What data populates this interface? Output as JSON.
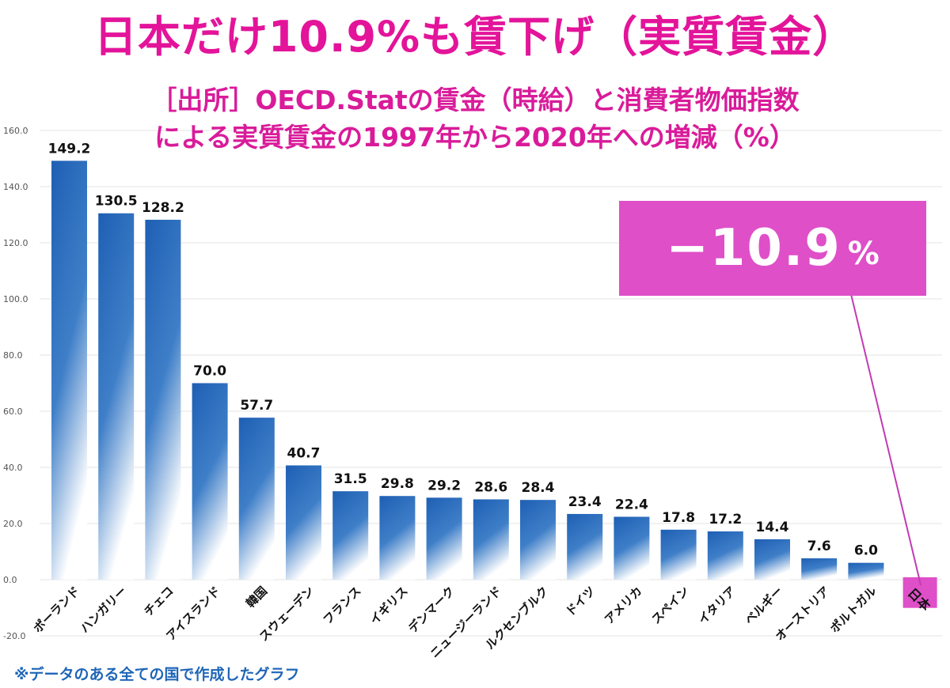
{
  "header": {
    "title": "日本だけ10.9%も賃下げ（実質賃金）",
    "subtitle_line1": "［出所］OECD.Statの賃金（時給）と消費者物価指数",
    "subtitle_line2": "による実質賃金の1997年から2020年への増減（%）"
  },
  "footnote": "※データのある全ての国で作成したグラフ",
  "callout": {
    "value": "−10.9",
    "unit": "%",
    "color": "#df4fc8"
  },
  "chart_data": {
    "type": "bar",
    "categories": [
      "ポーランド",
      "ハンガリー",
      "チェコ",
      "アイスランド",
      "韓国",
      "スウェーデン",
      "フランス",
      "イギリス",
      "デンマーク",
      "ニュージーランド",
      "ルクセンブルク",
      "ドイツ",
      "アメリカ",
      "スペイン",
      "イタリア",
      "ベルギー",
      "オーストリア",
      "ポルトガル",
      "日本"
    ],
    "values": [
      149.2,
      130.5,
      128.2,
      70.0,
      57.7,
      40.7,
      31.5,
      29.8,
      29.2,
      28.6,
      28.4,
      23.4,
      22.4,
      17.8,
      17.2,
      14.4,
      7.6,
      6.0,
      -10.9
    ],
    "data_labels": [
      "149.2",
      "130.5",
      "128.2",
      "70.0",
      "57.7",
      "40.7",
      "31.5",
      "29.8",
      "29.2",
      "28.6",
      "28.4",
      "23.4",
      "22.4",
      "17.8",
      "17.2",
      "14.4",
      "7.6",
      "6.0",
      ""
    ],
    "yticks": [
      -20,
      0,
      20,
      40,
      60,
      80,
      100,
      120,
      140,
      160
    ],
    "ytick_labels": [
      "-20.0",
      "0.0",
      "20.0",
      "40.0",
      "60.0",
      "80.0",
      "100.0",
      "120.0",
      "140.0",
      "160.0"
    ],
    "ylim": [
      -20,
      160
    ],
    "grid": true,
    "colors": {
      "bar_top": "#1e5fb4",
      "bar_bottom": "#ffffff",
      "highlight_fill": "#df4fc8",
      "grid": "#e3e3e3",
      "leader_line": "#c23bb3"
    }
  }
}
